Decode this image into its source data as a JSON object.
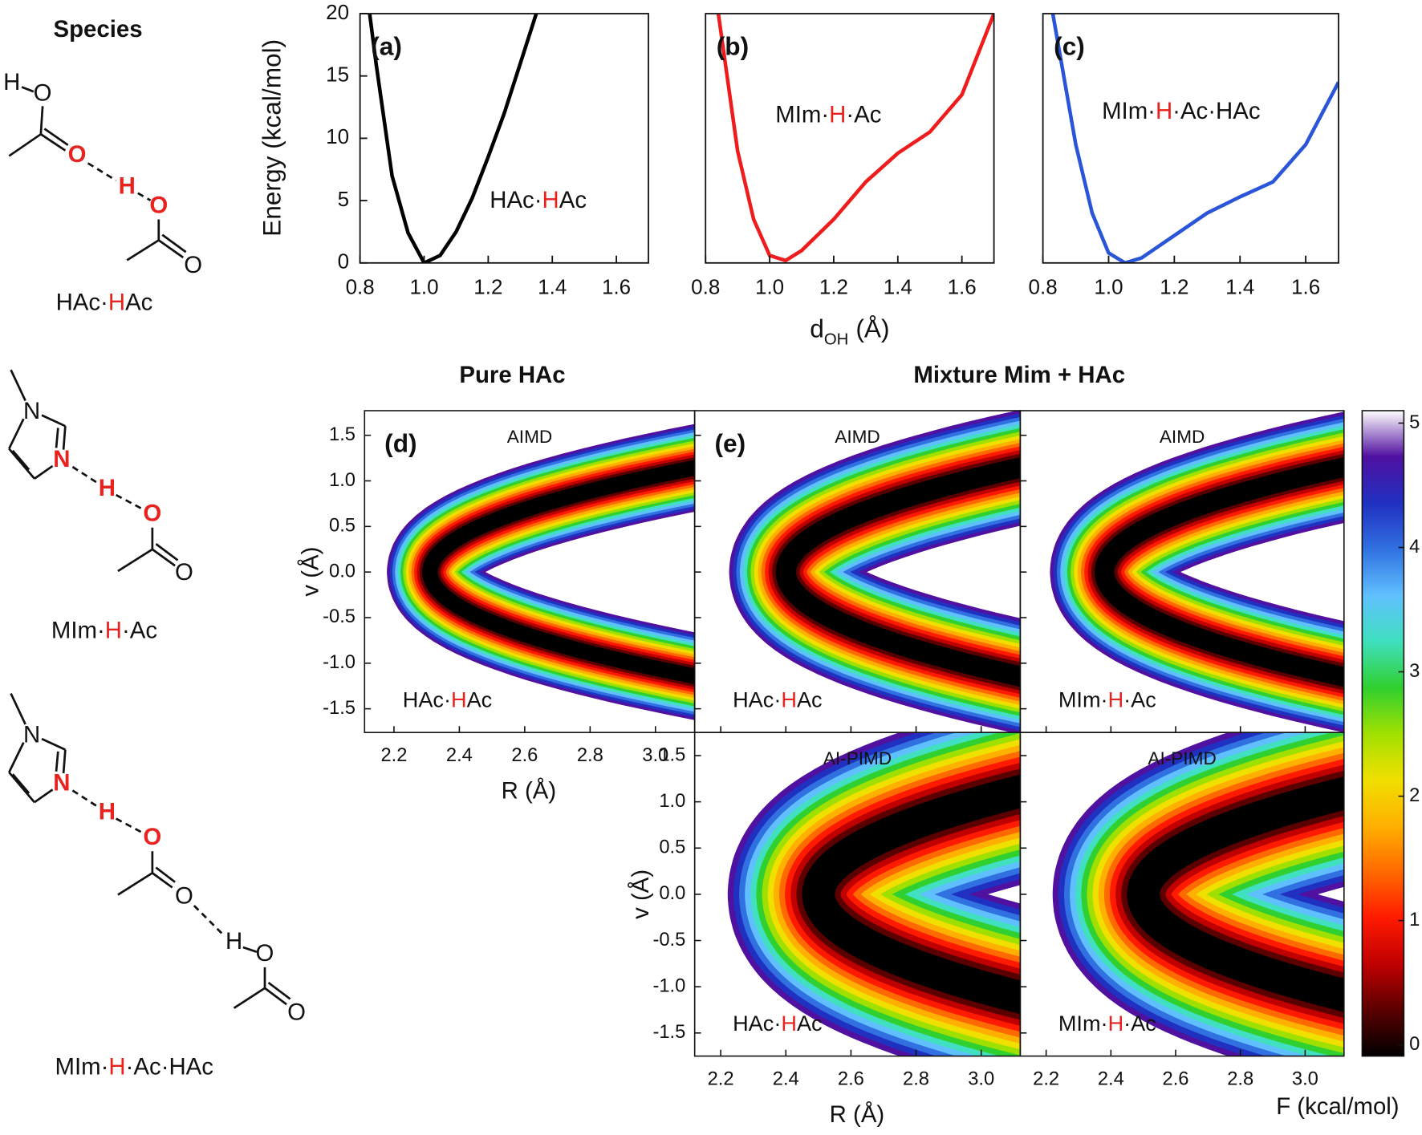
{
  "species": {
    "title": "Species",
    "items": [
      {
        "name_parts": [
          {
            "text": "HAc·"
          },
          {
            "text": "H",
            "color": "#e8221e"
          },
          {
            "text": "Ac"
          }
        ],
        "atoms": [
          "H",
          "O",
          "O",
          "H",
          "O",
          "O"
        ]
      },
      {
        "name_parts": [
          {
            "text": "MIm·"
          },
          {
            "text": "H",
            "color": "#e8221e"
          },
          {
            "text": "·Ac"
          }
        ],
        "atoms": [
          "N",
          "N",
          "H",
          "O",
          "O"
        ]
      },
      {
        "name_parts": [
          {
            "text": "MIm·"
          },
          {
            "text": "H",
            "color": "#e8221e"
          },
          {
            "text": "·Ac·HAc"
          }
        ],
        "atoms": [
          "N",
          "N",
          "H",
          "O",
          "O",
          "H",
          "O",
          "O"
        ]
      }
    ]
  },
  "chart_data": [
    {
      "type": "line",
      "panel_label": "(a)",
      "annotation_parts": [
        {
          "text": "HAc·"
        },
        {
          "text": "H",
          "color": "#e8221e"
        },
        {
          "text": "Ac"
        }
      ],
      "ylabel": "Energy (kcal/mol)",
      "xlim": [
        0.8,
        1.7
      ],
      "ylim": [
        0,
        20
      ],
      "xticks": [
        0.8,
        {
          "value": 1.0,
          "label": "1.0"
        },
        1.2,
        1.4,
        1.6
      ],
      "yticks": [
        0,
        5,
        10,
        15,
        20
      ],
      "x": [
        0.83,
        0.85,
        0.9,
        0.95,
        1.0,
        1.05,
        1.1,
        1.15,
        1.2,
        1.25,
        1.3,
        1.35
      ],
      "values": [
        20,
        16,
        7,
        2.4,
        0,
        0.6,
        2.5,
        5.2,
        8.5,
        12,
        16,
        20
      ],
      "color": "#000000"
    },
    {
      "type": "line",
      "panel_label": "(b)",
      "annotation_parts": [
        {
          "text": "MIm·"
        },
        {
          "text": "H",
          "color": "#e8221e"
        },
        {
          "text": "·Ac"
        }
      ],
      "xlabel": "d",
      "xlabel_sub": "OH",
      "xlabel_unit": "(Å)",
      "xlim": [
        0.8,
        1.7
      ],
      "ylim": [
        0,
        20
      ],
      "xticks": [
        0.8,
        {
          "value": 1.0,
          "label": "1.0"
        },
        1.2,
        1.4,
        1.6
      ],
      "x": [
        0.84,
        0.9,
        0.95,
        1.0,
        1.05,
        1.1,
        1.2,
        1.3,
        1.4,
        1.5,
        1.6,
        1.7
      ],
      "values": [
        20,
        9,
        3.5,
        0.6,
        0.2,
        1,
        3.5,
        6.5,
        8.8,
        10.5,
        13.5,
        20
      ],
      "color": "#ee1c1c"
    },
    {
      "type": "line",
      "panel_label": "(c)",
      "annotation_parts": [
        {
          "text": "MIm·"
        },
        {
          "text": "H",
          "color": "#e8221e"
        },
        {
          "text": "·Ac·HAc"
        }
      ],
      "xlim": [
        0.8,
        1.7
      ],
      "ylim": [
        0,
        20
      ],
      "xticks": [
        0.8,
        {
          "value": 1.0,
          "label": "1.0"
        },
        1.2,
        1.4,
        1.6
      ],
      "x": [
        0.83,
        0.9,
        0.95,
        1.0,
        1.05,
        1.1,
        1.2,
        1.3,
        1.4,
        1.5,
        1.6,
        1.7
      ],
      "values": [
        20,
        9.5,
        4,
        0.8,
        0,
        0.4,
        2.2,
        4,
        5.3,
        6.5,
        9.5,
        14.5
      ],
      "color": "#2a55d8"
    },
    {
      "type": "contour",
      "title": "Pure HAc",
      "panel_label": "(d)",
      "method": "AIMD",
      "annotation_parts": [
        {
          "text": "HAc·"
        },
        {
          "text": "H",
          "color": "#e8221e"
        },
        {
          "text": "Ac"
        }
      ],
      "xlabel": "R (Å)",
      "ylabel": "v (Å)",
      "xlim": [
        2.11,
        3.12
      ],
      "ylim": [
        -1.76,
        1.77
      ],
      "xticks": [
        2.2,
        2.4,
        2.6,
        2.8,
        {
          "value": 3.0,
          "label": "3.0"
        }
      ],
      "yticks": [
        -1.5,
        {
          "value": -1.0,
          "label": "-1.0"
        },
        -0.5,
        {
          "value": 0.0,
          "label": "0.0"
        },
        0.5,
        {
          "value": 1.0,
          "label": "1.0"
        },
        1.5
      ],
      "xticklabels": true,
      "yticklabels": true
    },
    {
      "type": "contour",
      "title": "Mixture Mim + HAc",
      "panel_label": "(e)",
      "method": "AIMD",
      "annotation_parts": [
        {
          "text": "HAc·"
        },
        {
          "text": "H",
          "color": "#e8221e"
        },
        {
          "text": "Ac"
        }
      ],
      "xlim": [
        2.12,
        3.12
      ],
      "ylim": [
        -1.76,
        1.77
      ],
      "xticks": [
        2.2,
        2.4,
        2.6,
        2.8,
        {
          "value": 3.0,
          "label": "3.0"
        }
      ],
      "yticks": [
        -1.5,
        {
          "value": -1.0,
          "label": "-1.0"
        },
        -0.5,
        {
          "value": 0.0,
          "label": "0.0"
        },
        0.5,
        {
          "value": 1.0,
          "label": "1.0"
        },
        1.5
      ],
      "xticklabels": false,
      "yticklabels": false
    },
    {
      "type": "contour",
      "method": "AIMD",
      "annotation_parts": [
        {
          "text": "MIm·"
        },
        {
          "text": "H",
          "color": "#e8221e"
        },
        {
          "text": "·Ac"
        }
      ],
      "xlim": [
        2.12,
        3.12
      ],
      "ylim": [
        -1.76,
        1.77
      ],
      "xticks": [
        2.2,
        2.4,
        2.6,
        2.8,
        {
          "value": 3.0,
          "label": "3.0"
        }
      ],
      "yticks": [
        -1.5,
        {
          "value": -1.0,
          "label": "-1.0"
        },
        -0.5,
        {
          "value": 0.0,
          "label": "0.0"
        },
        0.5,
        {
          "value": 1.0,
          "label": "1.0"
        },
        1.5
      ],
      "xticklabels": false,
      "yticklabels": false
    },
    {
      "type": "contour",
      "method": "AI-PIMD",
      "annotation_parts": [
        {
          "text": "HAc·"
        },
        {
          "text": "H",
          "color": "#e8221e"
        },
        {
          "text": "Ac"
        }
      ],
      "xlabel": "R (Å)",
      "ylabel": "v (Å)",
      "xlim": [
        2.12,
        3.12
      ],
      "ylim": [
        -1.75,
        1.75
      ],
      "xticks": [
        2.2,
        2.4,
        2.6,
        2.8,
        {
          "value": 3.0,
          "label": "3.0"
        }
      ],
      "yticks": [
        -1.5,
        {
          "value": -1.0,
          "label": "-1.0"
        },
        -0.5,
        {
          "value": 0.0,
          "label": "0.0"
        },
        0.5,
        {
          "value": 1.0,
          "label": "1.0"
        },
        1.5
      ],
      "xticklabels": true,
      "yticklabels": true
    },
    {
      "type": "contour",
      "method": "AI-PIMD",
      "annotation_parts": [
        {
          "text": "MIm·"
        },
        {
          "text": "H",
          "color": "#e8221e"
        },
        {
          "text": "·Ac"
        }
      ],
      "xlim": [
        2.12,
        3.12
      ],
      "ylim": [
        -1.75,
        1.75
      ],
      "xticks": [
        2.2,
        2.4,
        2.6,
        2.8,
        {
          "value": 3.0,
          "label": "3.0"
        }
      ],
      "yticks": [
        -1.5,
        {
          "value": -1.0,
          "label": "-1.0"
        },
        -0.5,
        {
          "value": 0.0,
          "label": "0.0"
        },
        0.5,
        {
          "value": 1.0,
          "label": "1.0"
        },
        1.5
      ],
      "xticklabels": true,
      "yticklabels": false
    }
  ],
  "colorbar": {
    "label": "F (kcal/mol)",
    "lim": [
      -0.09,
      5.1
    ],
    "ticks": [
      0,
      1,
      2,
      3,
      4,
      5
    ],
    "colors": [
      "#000000",
      "#5a0000",
      "#c00000",
      "#ff1a00",
      "#ff6a00",
      "#ffb000",
      "#f0e000",
      "#a0e000",
      "#30d030",
      "#40e0c0",
      "#60c0ff",
      "#3070e0",
      "#2030c0",
      "#5010a0",
      "#ffffff"
    ]
  }
}
